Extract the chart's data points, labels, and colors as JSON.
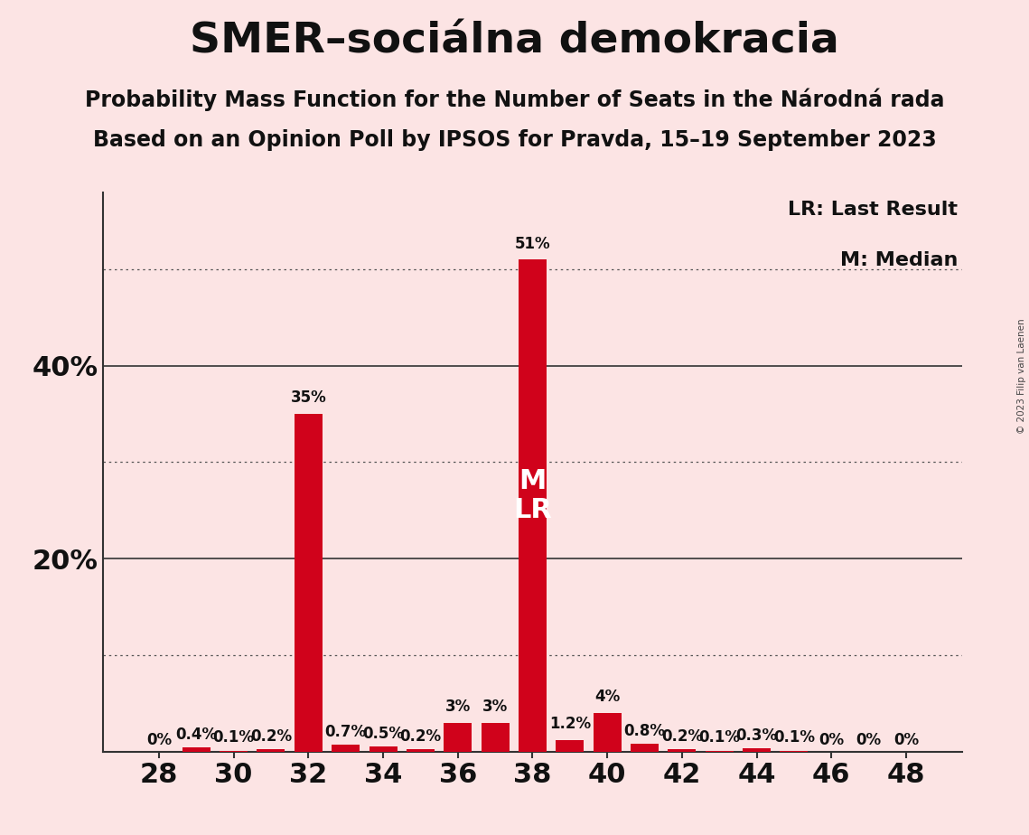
{
  "title": "SMER–sociálna demokracia",
  "subtitle1": "Probability Mass Function for the Number of Seats in the Národná rada",
  "subtitle2": "Based on an Opinion Poll by IPSOS for Pravda, 15–19 September 2023",
  "copyright": "© 2023 Filip van Laenen",
  "background_color": "#fce4e4",
  "bar_color": "#d0021b",
  "seats": [
    28,
    29,
    30,
    31,
    32,
    33,
    34,
    35,
    36,
    37,
    38,
    39,
    40,
    41,
    42,
    43,
    44,
    45,
    46,
    47,
    48
  ],
  "probabilities": [
    0.0,
    0.4,
    0.1,
    0.2,
    35.0,
    0.7,
    0.5,
    0.2,
    3.0,
    3.0,
    51.0,
    1.2,
    4.0,
    0.8,
    0.2,
    0.1,
    0.3,
    0.1,
    0.0,
    0.0,
    0.0
  ],
  "labels": [
    "0%",
    "0.4%",
    "0.1%",
    "0.2%",
    "35%",
    "0.7%",
    "0.5%",
    "0.2%",
    "3%",
    "3%",
    "51%",
    "1.2%",
    "4%",
    "0.8%",
    "0.2%",
    "0.1%",
    "0.3%",
    "0.1%",
    "0%",
    "0%",
    "0%"
  ],
  "xlim": [
    26.5,
    49.5
  ],
  "ylim": [
    0,
    58
  ],
  "xticks": [
    28,
    30,
    32,
    34,
    36,
    38,
    40,
    42,
    44,
    46,
    48
  ],
  "solid_gridlines": [
    20,
    40
  ],
  "dotted_gridlines": [
    10,
    30,
    50
  ],
  "median_seat": 38,
  "lr_seat": 38,
  "legend_lr": "LR: Last Result",
  "legend_m": "M: Median",
  "title_fontsize": 34,
  "subtitle_fontsize": 17,
  "label_fontsize": 12,
  "tick_fontsize": 22,
  "ytick_fontsize": 22,
  "ml_fontsize": 22,
  "legend_fontsize": 16
}
